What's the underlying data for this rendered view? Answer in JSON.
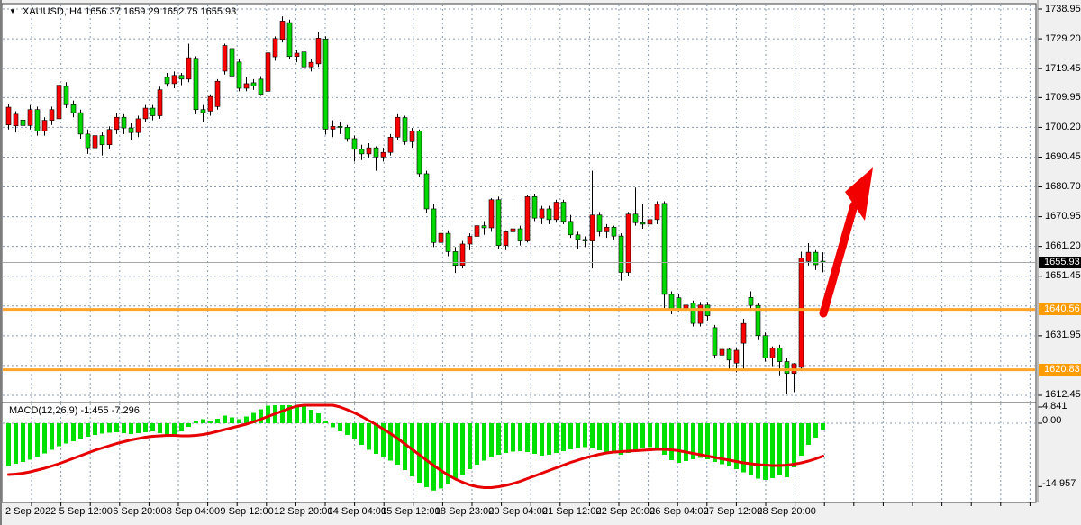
{
  "header": {
    "symbol_timeframe": "XAUUSD, H4",
    "ohlc_text": "1656.37 1659.29 1652.75 1655.93",
    "dropdown_icon": "triangle-down"
  },
  "macd_panel": {
    "label": "MACD(12,26,9) -1.455 -7.296",
    "axis_labels": [
      "4.841",
      "0.00",
      "-14.957"
    ],
    "axis_values": [
      4.841,
      0.0,
      -14.957
    ]
  },
  "price_axis": {
    "labels": [
      "1738.95",
      "1729.20",
      "1719.45",
      "1709.95",
      "1700.20",
      "1690.45",
      "1680.70",
      "1670.95",
      "1661.20",
      "1651.45",
      "1631.95",
      "1612.45"
    ],
    "values": [
      1738.95,
      1729.2,
      1719.45,
      1709.95,
      1700.2,
      1690.45,
      1680.7,
      1670.95,
      1661.2,
      1651.45,
      1631.95,
      1612.45
    ],
    "grid_only_values": [
      1641.7,
      1622.2
    ],
    "current_price_badge": "1655.93",
    "level_badges": [
      "1640.56",
      "1620.83"
    ]
  },
  "time_axis": {
    "labels": [
      "2 Sep 2022",
      "5 Sep 12:00",
      "6 Sep 20:00",
      "8 Sep 04:00",
      "9 Sep 12:00",
      "12 Sep 20:00",
      "14 Sep 04:00",
      "15 Sep 12:00",
      "18 Sep 23:00",
      "20 Sep 04:00",
      "21 Sep 12:00",
      "22 Sep 20:00",
      "26 Sep 04:00",
      "27 Sep 12:00",
      "28 Sep 20:00"
    ]
  },
  "colors": {
    "bull_candle": "#fa0000",
    "bear_candle": "#00d800",
    "candle_border": "#000000",
    "wick": "#000000",
    "grid": "#8a9ab0",
    "panel_bg": "#ffffff",
    "panel_border": "#3c3c3c",
    "orange_level": "#ffa428",
    "current_price_line": "#a8a8a8",
    "macd_histogram": "#00e000",
    "macd_signal": "#e60000",
    "arrow": "#f20000",
    "frame_bg": "#f0f0f0"
  },
  "chart_data": {
    "type": "candlestick",
    "symbol": "XAUUSD",
    "timeframe": "H4",
    "title": "XAUUSD, H4 gold candlestick chart with MACD(12,26,9) and bullish arrow annotation",
    "last_bar_ohlc": {
      "open": 1656.37,
      "high": 1659.29,
      "low": 1652.75,
      "close": 1655.93
    },
    "price_axis_range": [
      1612.45,
      1738.95
    ],
    "horizontal_levels": [
      1640.56,
      1620.83
    ],
    "current_price": 1655.93,
    "annotation": "thick red arrow pointing up-right from the 1640.56 level toward 1690 area",
    "color_scheme_note": "red = up candle, green = down candle",
    "candles": [
      [
        1701,
        1708,
        1699.5,
        1706.8
      ],
      [
        1700.7,
        1705.5,
        1698.5,
        1704.5
      ],
      [
        1702.6,
        1704,
        1698.5,
        1700.8
      ],
      [
        1700.8,
        1707.5,
        1699.5,
        1706
      ],
      [
        1706,
        1707,
        1697.5,
        1699
      ],
      [
        1699,
        1703.5,
        1697.5,
        1702.5
      ],
      [
        1702.5,
        1707,
        1701,
        1706
      ],
      [
        1703,
        1714.5,
        1702,
        1714
      ],
      [
        1713.6,
        1715,
        1706.5,
        1707.6
      ],
      [
        1707.6,
        1709,
        1703.5,
        1705
      ],
      [
        1705,
        1706,
        1696.5,
        1698
      ],
      [
        1698,
        1699.5,
        1691.5,
        1693.5
      ],
      [
        1693.5,
        1699,
        1692,
        1697.5
      ],
      [
        1697.5,
        1698.5,
        1691,
        1694.5
      ],
      [
        1694.5,
        1700.5,
        1693,
        1699.5
      ],
      [
        1699.5,
        1705,
        1698,
        1703.5
      ],
      [
        1703.5,
        1704.5,
        1698,
        1700
      ],
      [
        1700,
        1701.5,
        1696,
        1698.5
      ],
      [
        1698.5,
        1704,
        1697,
        1703
      ],
      [
        1703,
        1707.5,
        1702,
        1706.5
      ],
      [
        1706.5,
        1707.5,
        1702.5,
        1704
      ],
      [
        1704,
        1713.5,
        1703,
        1712.5
      ],
      [
        1716.6,
        1718,
        1713.5,
        1714.5
      ],
      [
        1714.5,
        1718.5,
        1713,
        1717.2
      ],
      [
        1717.2,
        1718,
        1714,
        1716
      ],
      [
        1716,
        1727.6,
        1715,
        1723
      ],
      [
        1722.8,
        1723.5,
        1704.5,
        1706
      ],
      [
        1706,
        1707.5,
        1702,
        1705
      ],
      [
        1705.5,
        1711,
        1704,
        1710.3
      ],
      [
        1707,
        1716,
        1706,
        1715.3
      ],
      [
        1718.6,
        1727.6,
        1717.5,
        1727
      ],
      [
        1726,
        1727,
        1716,
        1717
      ],
      [
        1721.6,
        1722.5,
        1712,
        1713
      ],
      [
        1713,
        1716.5,
        1712,
        1714.5
      ],
      [
        1714.8,
        1716,
        1712.5,
        1713.8
      ],
      [
        1716,
        1717,
        1710.5,
        1711
      ],
      [
        1712,
        1725.5,
        1711,
        1724.6
      ],
      [
        1723.3,
        1730,
        1722,
        1729.3
      ],
      [
        1729,
        1736.5,
        1728,
        1735
      ],
      [
        1734.5,
        1735.5,
        1722.5,
        1723.4
      ],
      [
        1723.4,
        1725.5,
        1721.5,
        1724.5
      ],
      [
        1724.9,
        1725.5,
        1719.5,
        1720
      ],
      [
        1720,
        1722.5,
        1718.5,
        1721.5
      ],
      [
        1721,
        1731.4,
        1720,
        1729.4
      ],
      [
        1729.1,
        1730,
        1697.8,
        1699.6
      ],
      [
        1699.6,
        1702.5,
        1697,
        1700.5
      ],
      [
        1700.5,
        1702,
        1698,
        1700.2
      ],
      [
        1700.2,
        1701,
        1695.5,
        1696.5
      ],
      [
        1696.5,
        1697.5,
        1689,
        1693
      ],
      [
        1693,
        1694.5,
        1689.5,
        1691.5
      ],
      [
        1691.5,
        1695,
        1690,
        1693.5
      ],
      [
        1693.5,
        1694,
        1686,
        1690.5
      ],
      [
        1690.5,
        1693.5,
        1689,
        1692
      ],
      [
        1692,
        1698,
        1691,
        1697
      ],
      [
        1697,
        1704.5,
        1696,
        1703.5
      ],
      [
        1703.4,
        1704,
        1694.5,
        1695.5
      ],
      [
        1695.5,
        1700,
        1693.5,
        1699
      ],
      [
        1699,
        1699.5,
        1684,
        1685
      ],
      [
        1685,
        1686,
        1672,
        1673.5
      ],
      [
        1673.5,
        1675,
        1661,
        1662.5
      ],
      [
        1662.5,
        1667,
        1660.5,
        1665.5
      ],
      [
        1665.5,
        1666.5,
        1658,
        1659.5
      ],
      [
        1659.5,
        1661,
        1652.5,
        1655
      ],
      [
        1655,
        1663,
        1654,
        1662
      ],
      [
        1662,
        1665.5,
        1660,
        1664.5
      ],
      [
        1664.5,
        1669,
        1663,
        1668
      ],
      [
        1668,
        1669.5,
        1665,
        1667.3
      ],
      [
        1667.3,
        1677,
        1666,
        1676.5
      ],
      [
        1676.5,
        1677.5,
        1660.5,
        1661.5
      ],
      [
        1661.5,
        1666.5,
        1660,
        1666
      ],
      [
        1666,
        1677.5,
        1664,
        1667
      ],
      [
        1667,
        1668,
        1661.5,
        1663
      ],
      [
        1663,
        1678,
        1662.5,
        1677.5
      ],
      [
        1677.5,
        1678.5,
        1669.5,
        1670.5
      ],
      [
        1670.5,
        1674.5,
        1668.5,
        1673.5
      ],
      [
        1673.5,
        1674.5,
        1668.5,
        1670
      ],
      [
        1670,
        1676.5,
        1669,
        1675.7
      ],
      [
        1675.7,
        1676.5,
        1668.5,
        1669.4
      ],
      [
        1669.4,
        1671.5,
        1664,
        1665
      ],
      [
        1665,
        1666,
        1660.5,
        1663.5
      ],
      [
        1663.5,
        1664.5,
        1661,
        1663
      ],
      [
        1663,
        1686,
        1654,
        1671.5
      ],
      [
        1671.5,
        1672.5,
        1664.5,
        1666
      ],
      [
        1666,
        1668.5,
        1664,
        1667.5
      ],
      [
        1667.5,
        1668,
        1663.5,
        1664.6
      ],
      [
        1664.6,
        1665.5,
        1650,
        1652.7
      ],
      [
        1652.7,
        1672.5,
        1651.5,
        1671.8
      ],
      [
        1671.8,
        1680.5,
        1668,
        1669
      ],
      [
        1669,
        1675,
        1667,
        1668.5
      ],
      [
        1668.5,
        1677,
        1667.5,
        1670
      ],
      [
        1670,
        1676,
        1668.5,
        1675
      ],
      [
        1675.3,
        1676,
        1641,
        1645.5
      ],
      [
        1645.5,
        1646.5,
        1639,
        1640.8
      ],
      [
        1644.4,
        1645.5,
        1640,
        1640.5
      ],
      [
        1640.5,
        1645.5,
        1637.5,
        1642
      ],
      [
        1642.6,
        1643.5,
        1635,
        1636
      ],
      [
        1636,
        1643,
        1635,
        1642
      ],
      [
        1642,
        1643,
        1637,
        1638.5
      ],
      [
        1634.6,
        1635.5,
        1624.5,
        1625.6
      ],
      [
        1625.6,
        1628.5,
        1622.5,
        1627.5
      ],
      [
        1627.5,
        1628,
        1621,
        1624
      ],
      [
        1623,
        1628,
        1620,
        1627.2
      ],
      [
        1629.5,
        1637.5,
        1620.5,
        1636
      ],
      [
        1644.5,
        1646.5,
        1640.5,
        1641.9
      ],
      [
        1641.9,
        1642.5,
        1630.5,
        1632
      ],
      [
        1632,
        1633,
        1623.5,
        1624.7
      ],
      [
        1624.7,
        1628.5,
        1622,
        1628
      ],
      [
        1628,
        1629,
        1619,
        1623.5
      ],
      [
        1623.5,
        1624.5,
        1612.9,
        1619.6
      ],
      [
        1619.6,
        1623,
        1613.5,
        1622.8
      ],
      [
        1621.6,
        1659.5,
        1620.5,
        1657.4
      ],
      [
        1656.3,
        1662.3,
        1655,
        1659.3
      ],
      [
        1659.3,
        1660,
        1653.5,
        1655.2
      ],
      [
        1656.37,
        1659.29,
        1652.75,
        1655.93
      ]
    ],
    "macd_histogram": [
      -9.5,
      -9.0,
      -8.6,
      -8.1,
      -7.4,
      -6.7,
      -5.9,
      -5.1,
      -4.5,
      -4.0,
      -3.5,
      -3.0,
      -2.6,
      -2.3,
      -2.1,
      -2.0,
      -2.2,
      -2.4,
      -2.2,
      -2.0,
      -1.8,
      -2.2,
      -2.6,
      -2.4,
      -1.8,
      -0.8,
      0.4,
      0.9,
      0.6,
      1.0,
      1.7,
      1.3,
      0.9,
      1.5,
      2.3,
      3.1,
      3.9,
      4.4,
      4.7,
      4.84,
      4.6,
      4.2,
      3.0,
      2.2,
      0.6,
      -0.9,
      -1.8,
      -2.6,
      -3.6,
      -4.8,
      -5.9,
      -6.8,
      -7.5,
      -8.3,
      -9.2,
      -10.4,
      -11.8,
      -13.2,
      -14.2,
      -14.96,
      -14.5,
      -13.6,
      -12.5,
      -11.4,
      -10.2,
      -9.2,
      -8.3,
      -7.6,
      -7.0,
      -6.6,
      -6.3,
      -6.2,
      -6.4,
      -6.8,
      -7.2,
      -7.0,
      -6.6,
      -6.2,
      -5.8,
      -5.5,
      -5.3,
      -5.6,
      -6.0,
      -6.4,
      -6.7,
      -7.0,
      -6.6,
      -6.0,
      -5.6,
      -5.3,
      -5.6,
      -7.0,
      -8.2,
      -8.8,
      -8.4,
      -8.0,
      -7.7,
      -8.0,
      -8.6,
      -9.1,
      -9.6,
      -10.2,
      -10.9,
      -11.6,
      -12.3,
      -12.6,
      -12.2,
      -11.6,
      -12.0,
      -9.8,
      -7.2,
      -4.8,
      -3.2,
      -1.455
    ],
    "macd_signal": [
      -11.4,
      -11.3,
      -11.1,
      -10.8,
      -10.4,
      -10.0,
      -9.5,
      -9.0,
      -8.4,
      -7.8,
      -7.2,
      -6.6,
      -6.0,
      -5.5,
      -5.0,
      -4.5,
      -4.1,
      -3.7,
      -3.4,
      -3.1,
      -2.9,
      -2.8,
      -2.7,
      -2.7,
      -2.8,
      -2.8,
      -2.7,
      -2.5,
      -2.2,
      -1.8,
      -1.4,
      -1.0,
      -0.6,
      -0.2,
      0.3,
      0.9,
      1.5,
      2.1,
      2.7,
      3.3,
      3.8,
      4.2,
      4.4,
      4.5,
      4.4,
      4.1,
      3.6,
      3.0,
      2.3,
      1.5,
      0.6,
      -0.3,
      -1.3,
      -2.3,
      -3.4,
      -4.6,
      -5.8,
      -7.0,
      -8.2,
      -9.4,
      -10.5,
      -11.5,
      -12.4,
      -13.1,
      -13.7,
      -14.1,
      -14.3,
      -14.3,
      -14.1,
      -13.8,
      -13.4,
      -12.9,
      -12.3,
      -11.7,
      -11.1,
      -10.5,
      -9.9,
      -9.3,
      -8.7,
      -8.2,
      -7.7,
      -7.3,
      -6.9,
      -6.6,
      -6.4,
      -6.3,
      -6.2,
      -6.1,
      -6.0,
      -5.9,
      -5.8,
      -5.8,
      -5.9,
      -6.1,
      -6.4,
      -6.7,
      -7.0,
      -7.3,
      -7.6,
      -7.9,
      -8.2,
      -8.5,
      -8.8,
      -9.0,
      -9.2,
      -9.3,
      -9.4,
      -9.4,
      -9.3,
      -9.1,
      -8.8,
      -8.4,
      -7.9,
      -7.296
    ],
    "macd_current": -1.455,
    "macd_signal_current": -7.296,
    "macd_axis_range": [
      -14.957,
      4.841
    ]
  }
}
